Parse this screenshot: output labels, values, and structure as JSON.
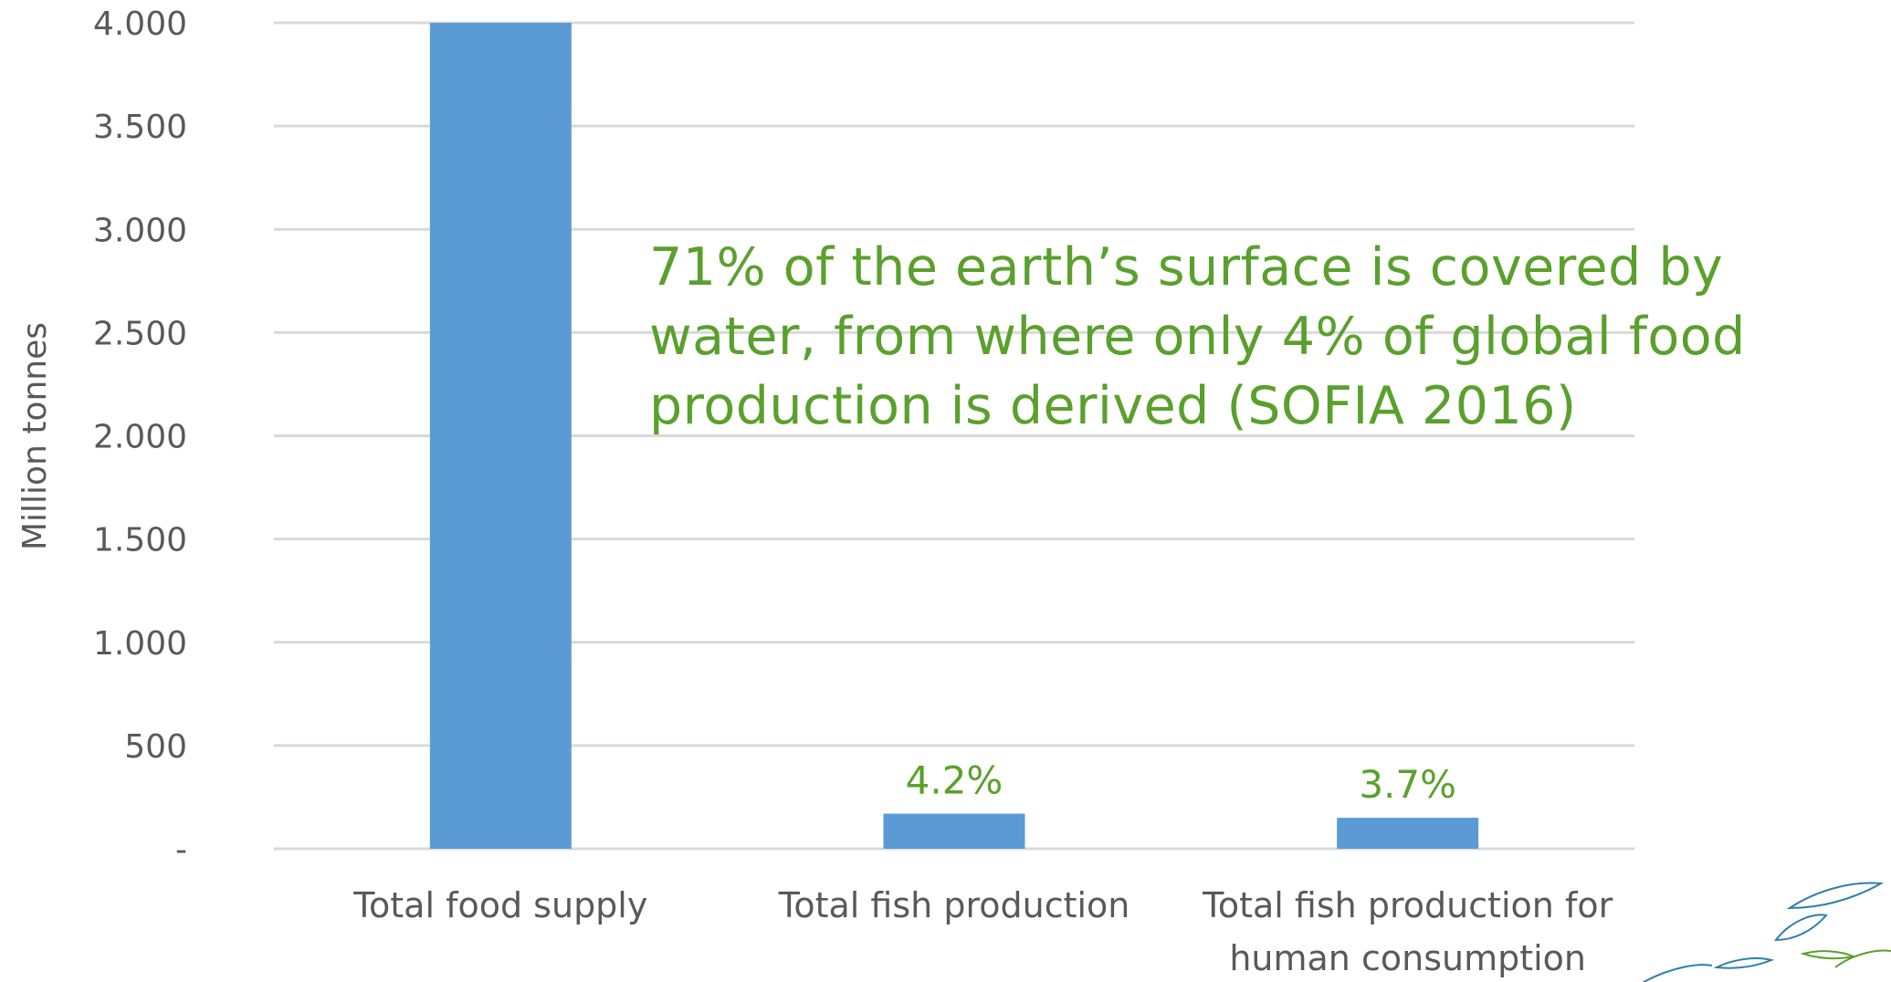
{
  "chart_data": {
    "type": "bar",
    "categories": [
      "Total food supply",
      "Total fish production",
      "Total fish production for human consumption"
    ],
    "category_label_lines": [
      [
        "Total food supply"
      ],
      [
        "Total fish production"
      ],
      [
        "Total fish production for",
        "human consumption"
      ]
    ],
    "values": [
      4000,
      170,
      150
    ],
    "data_labels": [
      "",
      "4.2%",
      "3.7%"
    ],
    "ylabel": "Million tonnes",
    "ylim": [
      0,
      4000
    ],
    "yticks": [
      0,
      500,
      1000,
      1500,
      2000,
      2500,
      3000,
      3500,
      4000
    ],
    "ytick_labels": [
      "-",
      "500",
      "1.000",
      "1.500",
      "2.000",
      "2.500",
      "3.000",
      "3.500",
      "4.000"
    ],
    "grid": true,
    "colors": {
      "bar": "#5b9bd5",
      "grid": "#d9d9d9",
      "tick_text": "#595959",
      "annotation": "#5aa02c"
    }
  },
  "annotation": {
    "lines": [
      "71% of the earth’s surface is covered by",
      "water, from where only 4% of global food",
      "production is derived (SOFIA 2016)"
    ]
  },
  "decoration": {
    "icon": "fish-leaf-logo-icon"
  }
}
